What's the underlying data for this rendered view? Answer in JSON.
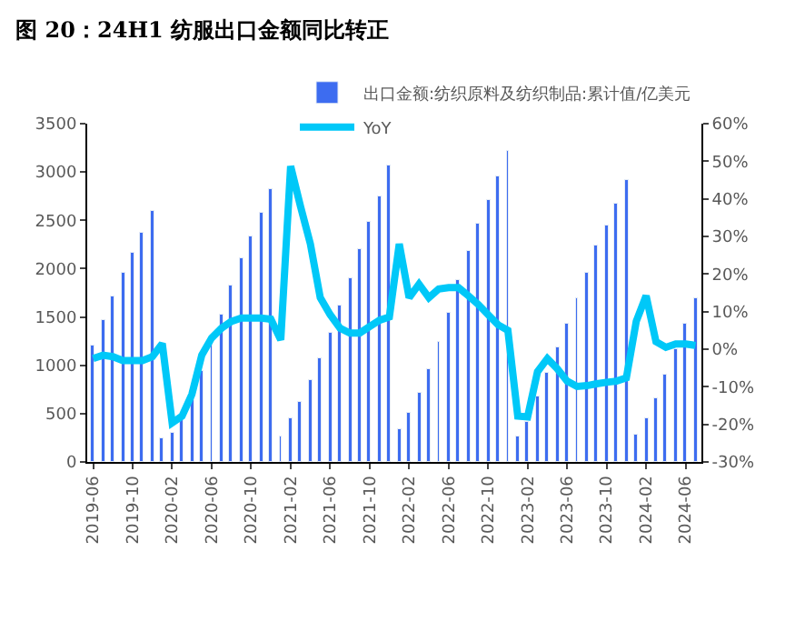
{
  "chart_data": {
    "type": "bar",
    "title": "图 20：24H1 纺服出口金额同比转正",
    "categories": [
      "2019-06",
      null,
      null,
      null,
      "2019-10",
      null,
      null,
      null,
      "2020-02",
      null,
      null,
      null,
      "2020-06",
      null,
      null,
      null,
      "2020-10",
      null,
      null,
      null,
      "2021-02",
      null,
      null,
      null,
      "2021-06",
      null,
      null,
      null,
      "2021-10",
      null,
      null,
      null,
      "2022-02",
      null,
      null,
      null,
      "2022-06",
      null,
      null,
      null,
      "2022-10",
      null,
      null,
      null,
      "2023-02",
      null,
      null,
      null,
      "2023-06",
      null,
      null,
      null,
      "2023-10",
      null,
      null,
      null,
      "2024-02",
      null,
      null,
      null,
      "2024-06",
      null
    ],
    "series": [
      {
        "name": "出口金额:纺织原料及纺织制品:累计值/亿美元",
        "color": "#3d6cf0",
        "values": [
          1200,
          1460,
          1710,
          1950,
          2160,
          2380,
          2600,
          250,
          300,
          450,
          660,
          950,
          1230,
          1530,
          1830,
          2100,
          2330,
          2570,
          2820,
          260,
          450,
          630,
          850,
          1080,
          1340,
          1620,
          1910,
          2200,
          2480,
          2750,
          3060,
          330,
          500,
          720,
          960,
          1250,
          1550,
          1880,
          2190,
          2460,
          2710,
          2950,
          3210,
          270,
          420,
          680,
          930,
          1180,
          1430,
          1690,
          1950,
          2230,
          2440,
          2670,
          2920,
          280,
          450,
          660,
          900,
          1160,
          1430,
          1690
        ]
      },
      {
        "name": "YoY",
        "type": "line",
        "axis": "y2",
        "color": "#00c8f8",
        "values": [
          -2.5,
          -1.6,
          -2,
          -3,
          -3,
          -3,
          -2,
          1.5,
          -19.6,
          -17.8,
          -12,
          -1.6,
          3,
          5.6,
          7.4,
          8.3,
          8.3,
          8.3,
          8,
          2.5,
          48.7,
          38,
          28,
          13.7,
          9.2,
          5.6,
          4.3,
          4.3,
          6,
          7.7,
          8.6,
          28,
          13.7,
          17.3,
          13.7,
          16,
          16.4,
          16.4,
          14.2,
          11.9,
          9.2,
          6.5,
          5,
          -17.8,
          -18,
          -6,
          -2.5,
          -5.2,
          -8.5,
          -9.9,
          -9.7,
          -9.2,
          -8.8,
          -8.5,
          -7.6,
          7.4,
          14.2,
          2,
          0.5,
          1.4,
          1.4,
          1
        ]
      }
    ],
    "ylim": [
      0,
      3500
    ],
    "yticks": [
      0,
      500,
      1000,
      1500,
      2000,
      2500,
      3000,
      3500
    ],
    "y2lim": [
      -30,
      60
    ],
    "y2ticks": [
      {
        "value": -30,
        "label": "-30%"
      },
      {
        "value": -20,
        "label": "-20%"
      },
      {
        "value": -10,
        "label": "-10%"
      },
      {
        "value": 0,
        "label": "0%"
      },
      {
        "value": 10,
        "label": "10%"
      },
      {
        "value": 20,
        "label": "20%"
      },
      {
        "value": 30,
        "label": "30%"
      },
      {
        "value": 40,
        "label": "40%"
      },
      {
        "value": 50,
        "label": "50%"
      },
      {
        "value": 60,
        "label": "60%"
      }
    ],
    "legend": "top right"
  }
}
